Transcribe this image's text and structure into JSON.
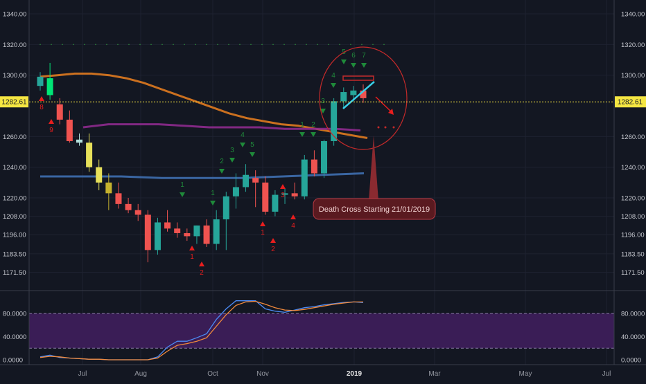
{
  "chart_data": [
    {
      "type": "candlestick",
      "price_axis": {
        "ticks": [
          "1340.00",
          "1320.00",
          "1300.00",
          "1282.61",
          "1260.00",
          "1240.00",
          "1220.00",
          "1208.00",
          "1196.00",
          "1183.50",
          "1171.50"
        ],
        "tick_values": [
          1340,
          1320,
          1300,
          1282.61,
          1260,
          1240,
          1220,
          1208,
          1196,
          1183.5,
          1171.5
        ],
        "current_price_label": "1282.61",
        "current_price": 1282.61
      },
      "time_axis": {
        "ticks": [
          "Jul",
          "Aug",
          "Oct",
          "Nov",
          "2019",
          "Mar",
          "May",
          "Jul"
        ]
      },
      "candles": [
        {
          "o": 1293,
          "h": 1302,
          "l": 1290,
          "c": 1299
        },
        {
          "o": 1298,
          "h": 1308,
          "l": 1284,
          "c": 1287
        },
        {
          "o": 1281,
          "h": 1285,
          "l": 1268,
          "c": 1271
        },
        {
          "o": 1271,
          "h": 1277,
          "l": 1256,
          "c": 1257
        },
        {
          "o": 1258,
          "h": 1262,
          "l": 1254,
          "c": 1256
        },
        {
          "o": 1256,
          "h": 1262,
          "l": 1237,
          "c": 1240
        },
        {
          "o": 1240,
          "h": 1245,
          "l": 1225,
          "c": 1230
        },
        {
          "o": 1230,
          "h": 1236,
          "l": 1212,
          "c": 1223
        },
        {
          "o": 1223,
          "h": 1230,
          "l": 1213,
          "c": 1216
        },
        {
          "o": 1216,
          "h": 1220,
          "l": 1210,
          "c": 1212
        },
        {
          "o": 1212,
          "h": 1216,
          "l": 1205,
          "c": 1209
        },
        {
          "o": 1209,
          "h": 1212,
          "l": 1178,
          "c": 1186
        },
        {
          "o": 1186,
          "h": 1207,
          "l": 1183,
          "c": 1204
        },
        {
          "o": 1204,
          "h": 1212,
          "l": 1198,
          "c": 1200
        },
        {
          "o": 1200,
          "h": 1204,
          "l": 1194,
          "c": 1197
        },
        {
          "o": 1197,
          "h": 1200,
          "l": 1192,
          "c": 1195
        },
        {
          "o": 1195,
          "h": 1202,
          "l": 1190,
          "c": 1202
        },
        {
          "o": 1202,
          "h": 1206,
          "l": 1188,
          "c": 1190
        },
        {
          "o": 1190,
          "h": 1212,
          "l": 1186,
          "c": 1206
        },
        {
          "o": 1206,
          "h": 1224,
          "l": 1186,
          "c": 1221
        },
        {
          "o": 1221,
          "h": 1236,
          "l": 1213,
          "c": 1227
        },
        {
          "o": 1227,
          "h": 1242,
          "l": 1224,
          "c": 1235
        },
        {
          "o": 1233,
          "h": 1238,
          "l": 1214,
          "c": 1230
        },
        {
          "o": 1230,
          "h": 1234,
          "l": 1209,
          "c": 1211
        },
        {
          "o": 1211,
          "h": 1225,
          "l": 1208,
          "c": 1222
        },
        {
          "o": 1222,
          "h": 1226,
          "l": 1216,
          "c": 1223
        },
        {
          "o": 1223,
          "h": 1230,
          "l": 1219,
          "c": 1221
        },
        {
          "o": 1221,
          "h": 1248,
          "l": 1219,
          "c": 1245
        },
        {
          "o": 1245,
          "h": 1251,
          "l": 1234,
          "c": 1236
        },
        {
          "o": 1236,
          "h": 1258,
          "l": 1233,
          "c": 1257
        },
        {
          "o": 1257,
          "h": 1285,
          "l": 1254,
          "c": 1283
        },
        {
          "o": 1283,
          "h": 1292,
          "l": 1279,
          "c": 1289
        },
        {
          "o": 1287,
          "h": 1293,
          "l": 1283,
          "c": 1290
        },
        {
          "o": 1290,
          "h": 1294,
          "l": 1282,
          "c": 1285
        }
      ],
      "moving_averages": [
        {
          "color": "#e07a1f",
          "values": [
            1299,
            1300,
            1301,
            1301,
            1300,
            1298,
            1295,
            1291,
            1287,
            1283,
            1279,
            1275,
            1272,
            1270,
            1268,
            1267,
            1265,
            1263,
            1261,
            1259
          ]
        },
        {
          "color": "#8e2a8e",
          "values": [
            1266,
            1268,
            1268,
            1268,
            1267,
            1266,
            1266,
            1266,
            1265,
            1265,
            1265,
            1264
          ]
        },
        {
          "color": "#3f6fb0",
          "values": [
            1234,
            1234,
            1234,
            1233,
            1233,
            1233,
            1234,
            1235,
            1236
          ]
        }
      ],
      "sequential_counts_green": [
        "1",
        "1",
        "2",
        "3",
        "4",
        "5",
        "1",
        "2",
        "3",
        "4",
        "5",
        "6",
        "7"
      ],
      "sequential_counts_red": [
        "8",
        "9",
        "1",
        "2",
        "1",
        "2",
        "3",
        "4"
      ],
      "annotation": "Death Cross Starting 21/01/2019",
      "oscillator": {
        "axis_ticks": [
          "80.0000",
          "40.0000",
          "0.0000"
        ],
        "tick_values": [
          80,
          40,
          0
        ],
        "range": [
          0,
          110
        ],
        "band": [
          20,
          80
        ],
        "series": [
          {
            "color": "#4c8bf5",
            "values": [
              5,
              8,
              4,
              3,
              2,
              1,
              1,
              0,
              0,
              0,
              0,
              0,
              5,
              22,
              32,
              32,
              38,
              45,
              70,
              88,
              102,
              102,
              102,
              88,
              84,
              82,
              86,
              90,
              92,
              95,
              97,
              99,
              100,
              99
            ]
          },
          {
            "color": "#f28a3c",
            "values": [
              4,
              6,
              5,
              3,
              2,
              1,
              1,
              0,
              0,
              0,
              0,
              0,
              3,
              15,
              25,
              28,
              32,
              38,
              58,
              78,
              94,
              100,
              101,
              96,
              90,
              86,
              85,
              87,
              90,
              93,
              96,
              98,
              100,
              100
            ]
          }
        ]
      }
    }
  ]
}
